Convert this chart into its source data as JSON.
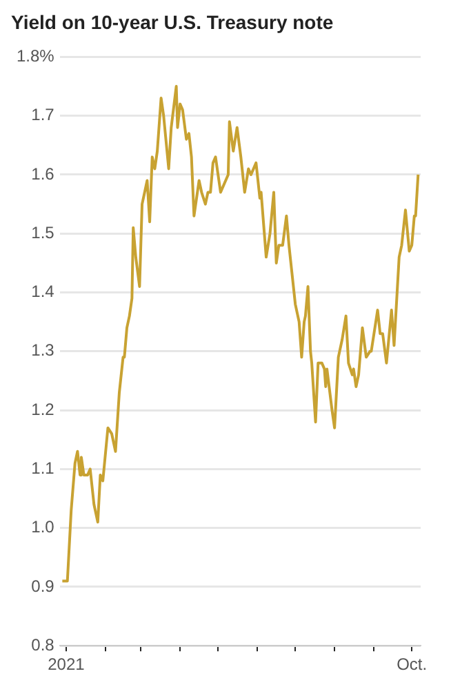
{
  "chart_data": {
    "type": "line",
    "title": "Yield on 10-year U.S. Treasury note",
    "xlim": [
      "2020-12-27",
      "2021-10-08"
    ],
    "xticks": [
      {
        "value": "2021-01-01",
        "label": "2021"
      },
      {
        "value": "2021-02-01",
        "label": null
      },
      {
        "value": "2021-03-01",
        "label": null
      },
      {
        "value": "2021-04-01",
        "label": null
      },
      {
        "value": "2021-05-01",
        "label": null
      },
      {
        "value": "2021-06-01",
        "label": null
      },
      {
        "value": "2021-07-01",
        "label": null
      },
      {
        "value": "2021-08-01",
        "label": null
      },
      {
        "value": "2021-09-01",
        "label": null
      },
      {
        "value": "2021-10-01",
        "label": "Oct."
      }
    ],
    "ylim": [
      0.8,
      1.8
    ],
    "yticks": [
      0.8,
      0.9,
      {
        "value": 1,
        "label": "1.0"
      },
      1.1,
      1.2,
      1.3,
      1.4,
      1.5,
      1.6,
      1.7,
      {
        "value": 1.8,
        "label": "1.8%"
      }
    ],
    "grid": "y",
    "marker": "none",
    "x": [
      "2020-12-29",
      "2021-01-02",
      "2021-01-05",
      "2021-01-08",
      "2021-01-10",
      "2021-01-12",
      "2021-01-13",
      "2021-01-15",
      "2021-01-18",
      "2021-01-20",
      "2021-01-23",
      "2021-01-26",
      "2021-01-28",
      "2021-01-30",
      "2021-02-03",
      "2021-02-06",
      "2021-02-09",
      "2021-02-12",
      "2021-02-15",
      "2021-02-16",
      "2021-02-18",
      "2021-02-20",
      "2021-02-22",
      "2021-02-23",
      "2021-02-25",
      "2021-02-28",
      "2021-03-02",
      "2021-03-06",
      "2021-03-08",
      "2021-03-10",
      "2021-03-12",
      "2021-03-14",
      "2021-03-17",
      "2021-03-19",
      "2021-03-23",
      "2021-03-25",
      "2021-03-29",
      "2021-03-30",
      "2021-04-01",
      "2021-04-03",
      "2021-04-06",
      "2021-04-08",
      "2021-04-10",
      "2021-04-12",
      "2021-04-16",
      "2021-04-18",
      "2021-04-21",
      "2021-04-23",
      "2021-04-25",
      "2021-04-27",
      "2021-04-29",
      "2021-05-03",
      "2021-05-09",
      "2021-05-10",
      "2021-05-13",
      "2021-05-16",
      "2021-05-19",
      "2021-05-22",
      "2021-05-25",
      "2021-05-27",
      "2021-05-31",
      "2021-06-03",
      "2021-06-04",
      "2021-06-08",
      "2021-06-11",
      "2021-06-14",
      "2021-06-16",
      "2021-06-18",
      "2021-06-21",
      "2021-06-24",
      "2021-06-26",
      "2021-06-28",
      "2021-07-01",
      "2021-07-04",
      "2021-07-06",
      "2021-07-08",
      "2021-07-09",
      "2021-07-11",
      "2021-07-13",
      "2021-07-14",
      "2021-07-17",
      "2021-07-19",
      "2021-07-22",
      "2021-07-24",
      "2021-07-25",
      "2021-07-26",
      "2021-07-30",
      "2021-08-01",
      "2021-08-04",
      "2021-08-07",
      "2021-08-10",
      "2021-08-12",
      "2021-08-15",
      "2021-08-16",
      "2021-08-18",
      "2021-08-20",
      "2021-08-23",
      "2021-08-26",
      "2021-08-29",
      "2021-08-30",
      "2021-09-04",
      "2021-09-06",
      "2021-09-08",
      "2021-09-11",
      "2021-09-15",
      "2021-09-17",
      "2021-09-21",
      "2021-09-23",
      "2021-09-26",
      "2021-09-29",
      "2021-10-01",
      "2021-10-03",
      "2021-10-04",
      "2021-10-06"
    ],
    "series": [
      {
        "color": "#c8a232",
        "values": [
          0.91,
          0.91,
          1.03,
          1.11,
          1.13,
          1.09,
          1.12,
          1.09,
          1.09,
          1.1,
          1.04,
          1.01,
          1.09,
          1.08,
          1.17,
          1.16,
          1.13,
          1.23,
          1.29,
          1.29,
          1.34,
          1.36,
          1.39,
          1.51,
          1.46,
          1.41,
          1.55,
          1.59,
          1.52,
          1.63,
          1.61,
          1.64,
          1.73,
          1.7,
          1.61,
          1.68,
          1.75,
          1.68,
          1.72,
          1.71,
          1.66,
          1.67,
          1.63,
          1.53,
          1.59,
          1.57,
          1.55,
          1.57,
          1.57,
          1.62,
          1.63,
          1.57,
          1.6,
          1.69,
          1.64,
          1.68,
          1.63,
          1.57,
          1.61,
          1.6,
          1.62,
          1.56,
          1.57,
          1.46,
          1.5,
          1.57,
          1.45,
          1.48,
          1.48,
          1.53,
          1.48,
          1.44,
          1.38,
          1.35,
          1.29,
          1.35,
          1.36,
          1.41,
          1.3,
          1.28,
          1.18,
          1.28,
          1.28,
          1.27,
          1.24,
          1.27,
          1.2,
          1.17,
          1.29,
          1.32,
          1.36,
          1.28,
          1.26,
          1.27,
          1.24,
          1.26,
          1.34,
          1.29,
          1.3,
          1.3,
          1.37,
          1.33,
          1.33,
          1.28,
          1.37,
          1.31,
          1.46,
          1.48,
          1.54,
          1.47,
          1.48,
          1.53,
          1.53,
          1.6
        ]
      }
    ]
  }
}
